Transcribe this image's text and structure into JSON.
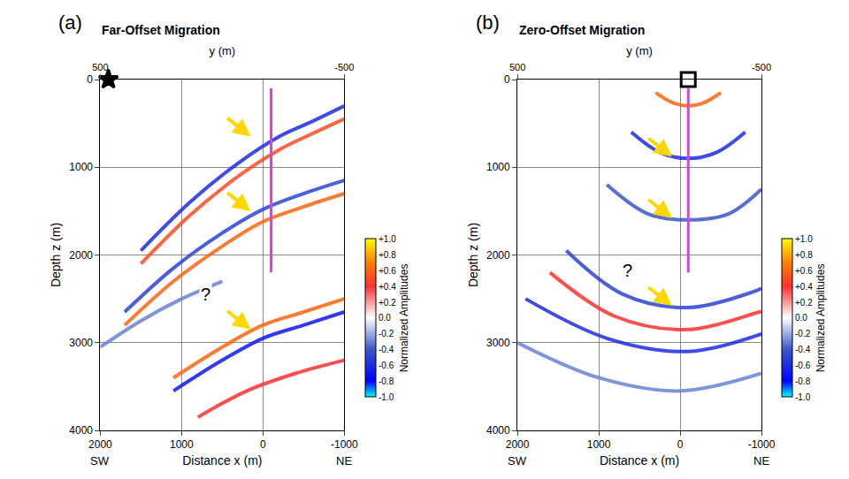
{
  "chart_data": [
    {
      "type": "section",
      "letter": "(a)",
      "title": "Far-Offset Migration",
      "xlabel": "Distance x (m)",
      "xlim": [
        2000,
        -1000
      ],
      "xticks": [
        2000,
        1000,
        0,
        -1000
      ],
      "zlabel": "Depth z (m)",
      "zlim": [
        4000,
        0
      ],
      "zticks": [
        0,
        1000,
        2000,
        3000,
        4000
      ],
      "ylabel": "y (m)",
      "ylim": [
        500,
        -500
      ],
      "yticks": [
        -500,
        500
      ],
      "x_end_labels": [
        "SW",
        "NE"
      ],
      "grid": true,
      "colorbar": {
        "title": "Normalized Amplitudes",
        "range": [
          -1,
          1
        ],
        "ticks": [
          {
            "value": 1,
            "label": "+1.0"
          },
          {
            "value": 0.8,
            "label": "+0.8"
          },
          {
            "value": 0.6,
            "label": "+0.6"
          },
          {
            "value": 0.4,
            "label": "+0.4"
          },
          {
            "value": 0.2,
            "label": "+0.2"
          },
          {
            "value": 0,
            "label": "0.0"
          },
          {
            "value": -0.2,
            "label": "-0.2"
          },
          {
            "value": -0.4,
            "label": "-0.4"
          },
          {
            "value": -0.6,
            "label": "-0.6"
          },
          {
            "value": -0.8,
            "label": "-0.8"
          },
          {
            "value": -1,
            "label": "-1.0"
          }
        ]
      },
      "reflectors": [
        {
          "x": [
            -1000,
            -600,
            -200,
            300,
            900,
            1500
          ],
          "z": [
            300,
            480,
            650,
            950,
            1400,
            1950
          ],
          "amplitude": -0.6
        },
        {
          "x": [
            -1000,
            -600,
            -200,
            300,
            900,
            1500
          ],
          "z": [
            450,
            620,
            800,
            1100,
            1550,
            2100
          ],
          "amplitude": 0.5
        },
        {
          "x": [
            -1000,
            -500,
            0,
            500,
            1100,
            1700
          ],
          "z": [
            1150,
            1300,
            1480,
            1750,
            2150,
            2650
          ],
          "amplitude": -0.5
        },
        {
          "x": [
            -1000,
            -500,
            0,
            500,
            1100,
            1700
          ],
          "z": [
            1300,
            1450,
            1620,
            1900,
            2300,
            2800
          ],
          "amplitude": 0.6
        },
        {
          "x": [
            -1000,
            -500,
            0,
            500,
            1100
          ],
          "z": [
            2500,
            2650,
            2800,
            3050,
            3400
          ],
          "amplitude": 0.6
        },
        {
          "x": [
            -1000,
            -500,
            0,
            500,
            1100
          ],
          "z": [
            2650,
            2800,
            2950,
            3200,
            3550
          ],
          "amplitude": -0.7
        },
        {
          "x": [
            -1000,
            -400,
            200,
            800
          ],
          "z": [
            3200,
            3350,
            3550,
            3850
          ],
          "amplitude": 0.4
        },
        {
          "x": [
            500,
            1000,
            1500,
            2000
          ],
          "z": [
            2300,
            2500,
            2750,
            3050
          ],
          "amplitude": -0.3
        }
      ],
      "well": {
        "x": [
          -100,
          -100
        ],
        "z": [
          100,
          2200
        ],
        "color": "#e23ce6"
      },
      "point": {
        "x": 1900,
        "z": 0,
        "marker": "star",
        "color": "#000000"
      },
      "arrows": {
        "color": "#ffd700",
        "points": [
          {
            "x": 150,
            "z": 650
          },
          {
            "x": 150,
            "z": 1500
          },
          {
            "x": 150,
            "z": 2850
          }
        ]
      },
      "annotations": [
        {
          "text": "?",
          "x": 700,
          "z": 2450
        }
      ]
    },
    {
      "type": "section",
      "letter": "(b)",
      "title": "Zero-Offset Migration",
      "xlabel": "Distance x (m)",
      "xlim": [
        2000,
        -1000
      ],
      "xticks": [
        2000,
        1000,
        0,
        -1000
      ],
      "zlabel": "Depth z (m)",
      "zlim": [
        4000,
        0
      ],
      "zticks": [
        0,
        1000,
        2000,
        3000,
        4000
      ],
      "ylabel": "y (m)",
      "ylim": [
        500,
        -500
      ],
      "yticks": [
        -500,
        500
      ],
      "x_end_labels": [
        "SW",
        "NE"
      ],
      "grid": true,
      "colorbar": {
        "title": "Normalized Amplitudes",
        "range": [
          -1,
          1
        ],
        "ticks": [
          {
            "value": 1,
            "label": "+1.0"
          },
          {
            "value": 0.8,
            "label": "+0.8"
          },
          {
            "value": 0.6,
            "label": "+0.6"
          },
          {
            "value": 0.4,
            "label": "+0.4"
          },
          {
            "value": 0.2,
            "label": "+0.2"
          },
          {
            "value": 0,
            "label": "0.0"
          },
          {
            "value": -0.2,
            "label": "-0.2"
          },
          {
            "value": -0.4,
            "label": "-0.4"
          },
          {
            "value": -0.6,
            "label": "-0.6"
          },
          {
            "value": -0.8,
            "label": "-0.8"
          },
          {
            "value": -1,
            "label": "-1.0"
          }
        ]
      },
      "reflectors": [
        {
          "x": [
            300,
            100,
            -100,
            -300,
            -500
          ],
          "z": [
            150,
            260,
            300,
            260,
            150
          ],
          "amplitude": 0.6
        },
        {
          "x": [
            600,
            250,
            -100,
            -450,
            -800
          ],
          "z": [
            600,
            830,
            900,
            830,
            600
          ],
          "amplitude": -0.6
        },
        {
          "x": [
            900,
            400,
            -100,
            -600,
            -1000
          ],
          "z": [
            1200,
            1530,
            1600,
            1530,
            1250
          ],
          "amplitude": -0.4
        },
        {
          "x": [
            1400,
            700,
            -100,
            -900,
            -1000
          ],
          "z": [
            1950,
            2450,
            2600,
            2420,
            2380
          ],
          "amplitude": -0.5
        },
        {
          "x": [
            1600,
            800,
            -100,
            -900,
            -1000
          ],
          "z": [
            2200,
            2700,
            2850,
            2670,
            2640
          ],
          "amplitude": 0.4
        },
        {
          "x": [
            1900,
            900,
            -100,
            -1000
          ],
          "z": [
            2500,
            2950,
            3100,
            2900
          ],
          "amplitude": -0.6
        },
        {
          "x": [
            2000,
            1000,
            0,
            -1000
          ],
          "z": [
            3000,
            3400,
            3550,
            3350
          ],
          "amplitude": -0.3
        }
      ],
      "well": {
        "x": [
          -100,
          -100
        ],
        "z": [
          100,
          2200
        ],
        "color": "#e23ce6"
      },
      "point": {
        "x": -100,
        "z": 0,
        "marker": "square-open",
        "color": "#000000"
      },
      "arrows": {
        "color": "#ffd700",
        "points": [
          {
            "x": 100,
            "z": 880
          },
          {
            "x": 100,
            "z": 1580
          },
          {
            "x": 100,
            "z": 2580
          }
        ]
      },
      "annotations": [
        {
          "text": "?",
          "x": 650,
          "z": 2180
        }
      ]
    }
  ]
}
